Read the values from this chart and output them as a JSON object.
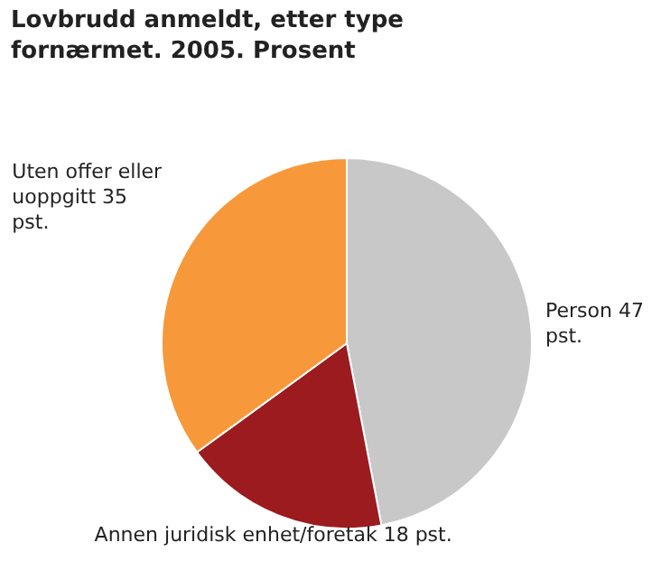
{
  "chart_data": {
    "type": "pie",
    "title": "Lovbrudd anmeldt, etter type fornærmet. 2005. Prosent",
    "categories": [
      "Person",
      "Annen juridisk enhet/foretak",
      "Uten offer eller uoppgitt"
    ],
    "values": [
      47,
      18,
      35
    ],
    "colors": [
      "#c8c8c8",
      "#9b1b1e",
      "#f7993a"
    ],
    "value_labels": [
      "47 pst.",
      "18 pst.",
      "35 pst."
    ]
  }
}
